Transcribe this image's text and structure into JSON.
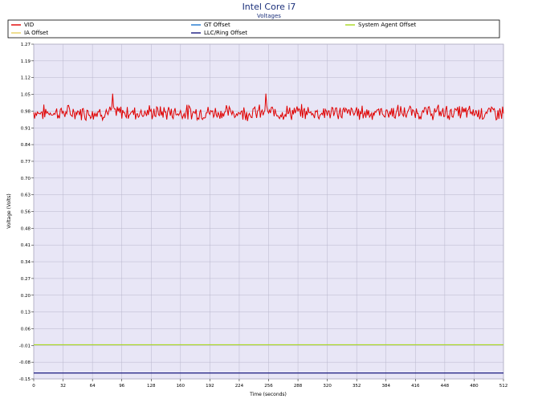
{
  "chart_data": {
    "type": "line",
    "title": "Intel Core i7",
    "subtitle": "Voltages",
    "xlabel": "Time (seconds)",
    "ylabel": "Voltage (Volts)",
    "xlim": [
      0,
      512
    ],
    "ylim": [
      -0.15,
      1.27
    ],
    "grid": true,
    "legend_position": "top",
    "x_ticks": [
      0,
      32,
      64,
      96,
      128,
      160,
      192,
      224,
      256,
      288,
      320,
      352,
      384,
      416,
      448,
      480,
      512
    ],
    "y_ticks": [
      "1.27",
      "1.19",
      "1.12",
      "1.05",
      "0.98",
      "0.91",
      "0.84",
      "0.77",
      "0.70",
      "0.63",
      "0.56",
      "0.48",
      "0.41",
      "0.34",
      "0.27",
      "0.20",
      "0.13",
      "0.06",
      "-0.01",
      "-0.08",
      "-0.15"
    ],
    "series": [
      {
        "name": "VID",
        "color": "#e00000",
        "mean": 0.98,
        "noise": 0.025,
        "peak": 1.06
      },
      {
        "name": "GT Offset",
        "color": "#1f77d0",
        "values": [],
        "constant": null
      },
      {
        "name": "System Agent Offset",
        "color": "#a8d820",
        "constant": -0.005
      },
      {
        "name": "IA Offset",
        "color": "#e8d060",
        "constant": null
      },
      {
        "name": "LLC/Ring Offset",
        "color": "#1a1a80",
        "constant": -0.125
      }
    ]
  }
}
